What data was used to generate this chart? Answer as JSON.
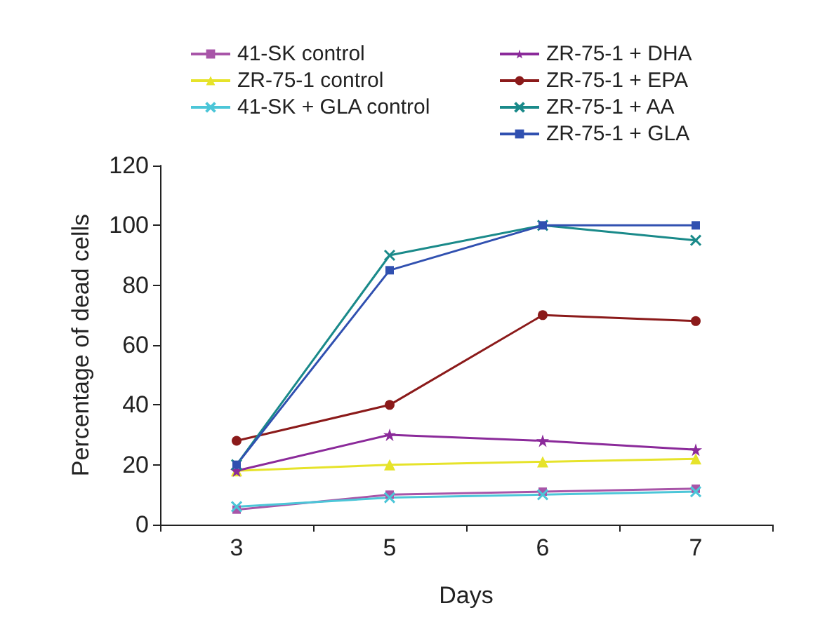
{
  "chart_data": {
    "type": "line",
    "xlabel": "Days",
    "ylabel": "Percentage of dead cells",
    "categories": [
      "3",
      "5",
      "6",
      "7"
    ],
    "ylim": [
      0,
      120
    ],
    "yticks": [
      0,
      20,
      40,
      60,
      80,
      100,
      120
    ],
    "grid": false,
    "legend": "top",
    "series": [
      {
        "name": "41-SK control",
        "color": "#a855a8",
        "marker": "square",
        "values": [
          5,
          10,
          11,
          12
        ]
      },
      {
        "name": "ZR-75-1 control",
        "color": "#e6e32a",
        "marker": "triangle",
        "values": [
          18,
          20,
          21,
          22
        ]
      },
      {
        "name": "41-SK + GLA control",
        "color": "#4cc6d8",
        "marker": "cross",
        "values": [
          6,
          9,
          10,
          11
        ]
      },
      {
        "name": "ZR-75-1 + DHA",
        "color": "#8b2a9a",
        "marker": "star",
        "values": [
          18,
          30,
          28,
          25
        ]
      },
      {
        "name": "ZR-75-1 + EPA",
        "color": "#8b1a1a",
        "marker": "circle",
        "values": [
          28,
          40,
          70,
          68
        ]
      },
      {
        "name": "ZR-75-1 + AA",
        "color": "#1a8a8a",
        "marker": "cross",
        "values": [
          20,
          90,
          100,
          95
        ]
      },
      {
        "name": "ZR-75-1 + GLA",
        "color": "#3050b0",
        "marker": "square",
        "values": [
          20,
          85,
          100,
          100
        ]
      }
    ]
  }
}
